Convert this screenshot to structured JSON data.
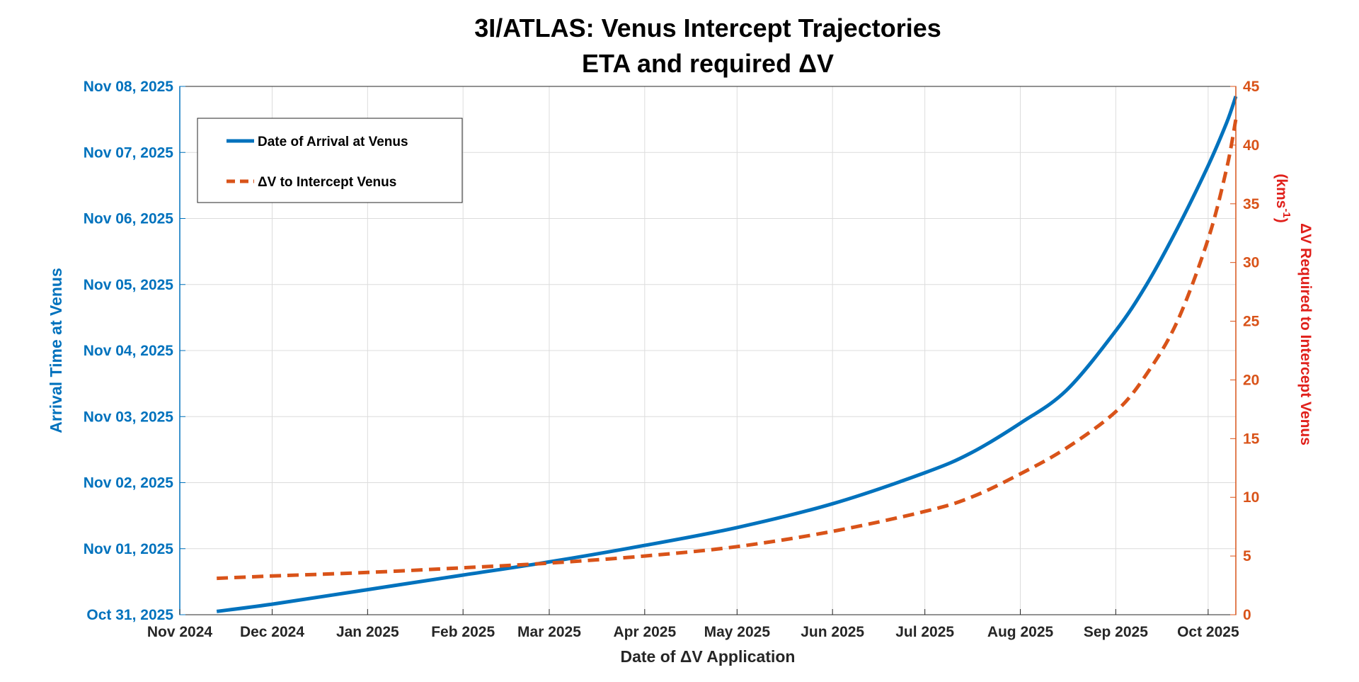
{
  "chart_data": {
    "type": "line",
    "title": "3I/ATLAS: Venus Intercept Trajectories",
    "subtitle": "ETA and required ΔV",
    "xlabel": "Date of ΔV Application",
    "ylabel_left": "Arrival Time at Venus",
    "ylabel_right_line1": "ΔV Required to Intercept Venus",
    "ylabel_right_line2_prefix": "(kms",
    "ylabel_right_line2_sup": "-1",
    "ylabel_right_line2_suffix": ")",
    "x_unit": "days since 2024-11-01",
    "xlim": [
      0,
      343
    ],
    "x_ticks": [
      {
        "label": "Nov 2024",
        "value": 0
      },
      {
        "label": "Dec 2024",
        "value": 30
      },
      {
        "label": "Jan 2025",
        "value": 61
      },
      {
        "label": "Feb 2025",
        "value": 92
      },
      {
        "label": "Mar 2025",
        "value": 120
      },
      {
        "label": "Apr 2025",
        "value": 151
      },
      {
        "label": "May 2025",
        "value": 181
      },
      {
        "label": "Jun 2025",
        "value": 212
      },
      {
        "label": "Jul 2025",
        "value": 242
      },
      {
        "label": "Aug 2025",
        "value": 273
      },
      {
        "label": "Sep 2025",
        "value": 304
      },
      {
        "label": "Oct 2025",
        "value": 334
      }
    ],
    "y_left_unit": "days since 2025-10-31",
    "y_left_lim": [
      0,
      8
    ],
    "y_left_ticks": [
      {
        "label": "Oct 31, 2025",
        "value": 0
      },
      {
        "label": "Nov 01, 2025",
        "value": 1
      },
      {
        "label": "Nov 02, 2025",
        "value": 2
      },
      {
        "label": "Nov 03, 2025",
        "value": 3
      },
      {
        "label": "Nov 04, 2025",
        "value": 4
      },
      {
        "label": "Nov 05, 2025",
        "value": 5
      },
      {
        "label": "Nov 06, 2025",
        "value": 6
      },
      {
        "label": "Nov 07, 2025",
        "value": 7
      },
      {
        "label": "Nov 08, 2025",
        "value": 8
      }
    ],
    "y_right_lim": [
      0,
      45
    ],
    "y_right_ticks": [
      0,
      5,
      10,
      15,
      20,
      25,
      30,
      35,
      40,
      45
    ],
    "grid": true,
    "legend_position": "top-left",
    "series": [
      {
        "name": "Date of Arrival at Venus",
        "axis": "left",
        "color": "#0072BD",
        "style": "solid",
        "x": [
          12,
          30,
          61,
          92,
          120,
          151,
          181,
          212,
          242,
          257,
          273,
          288,
          304,
          314,
          324,
          334,
          340,
          343
        ],
        "y": [
          0.05,
          0.16,
          0.38,
          0.6,
          0.8,
          1.05,
          1.32,
          1.68,
          2.15,
          2.45,
          2.9,
          3.4,
          4.3,
          5.0,
          5.85,
          6.8,
          7.45,
          7.85
        ]
      },
      {
        "name": "ΔV to Intercept Venus",
        "axis": "right",
        "color": "#D95319",
        "style": "dashed",
        "x": [
          12,
          30,
          61,
          92,
          120,
          151,
          181,
          212,
          242,
          257,
          273,
          288,
          304,
          314,
          324,
          334,
          340,
          343
        ],
        "y": [
          3.1,
          3.3,
          3.6,
          4.0,
          4.4,
          5.0,
          5.8,
          7.1,
          8.8,
          10.0,
          12.0,
          14.2,
          17.3,
          20.5,
          25.0,
          32.0,
          38.0,
          42.2
        ]
      }
    ]
  }
}
